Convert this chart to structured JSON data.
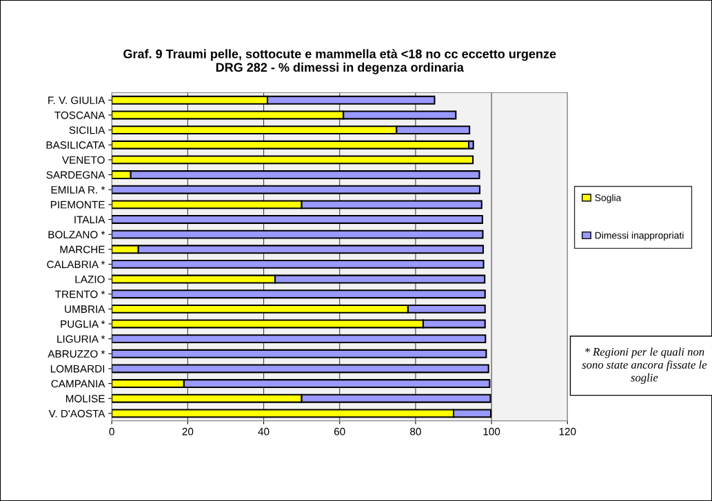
{
  "chart_data": {
    "type": "bar",
    "orientation": "horizontal",
    "stacked": true,
    "title": "Graf. 9 Traumi pelle, sottocute e mammella età <18 no cc eccetto urgenze\nDRG 282 - % dimessi in degenza ordinaria",
    "categories": [
      "F. V. GIULIA",
      "TOSCANA",
      "SICILIA",
      "BASILICATA",
      "VENETO",
      "SARDEGNA",
      "EMILIA R. *",
      "PIEMONTE",
      "ITALIA",
      "BOLZANO *",
      "MARCHE",
      "CALABRIA *",
      "LAZIO",
      "TRENTO *",
      "UMBRIA",
      "PUGLIA *",
      "LIGURIA *",
      "ABRUZZO *",
      "LOMBARDI",
      "CAMPANIA",
      "MOLISE",
      "V. D'AOSTA"
    ],
    "series": [
      {
        "name": "Soglia",
        "color": "#ffff00",
        "values": [
          41,
          61,
          75,
          94,
          95.1,
          5,
          null,
          50,
          null,
          null,
          7,
          null,
          43,
          null,
          78,
          82,
          null,
          null,
          null,
          19,
          50,
          90
        ]
      },
      {
        "name": "Dimessi inappropriati",
        "color": "#9999ff",
        "values": [
          44,
          29.6,
          19.2,
          1.2,
          null,
          91.8,
          96.9,
          47.4,
          97.6,
          97.7,
          90.8,
          97.9,
          55.2,
          98.3,
          20.3,
          16.3,
          98.4,
          98.6,
          99.2,
          80.5,
          49.7,
          9.8
        ]
      }
    ],
    "xlim": [
      0,
      120
    ],
    "xticks": [
      0,
      20,
      40,
      60,
      80,
      100,
      120
    ],
    "grid": "x",
    "legend": "right",
    "annotations": [
      "* Regioni per le quali non sono state ancora fissate le soglie"
    ]
  }
}
